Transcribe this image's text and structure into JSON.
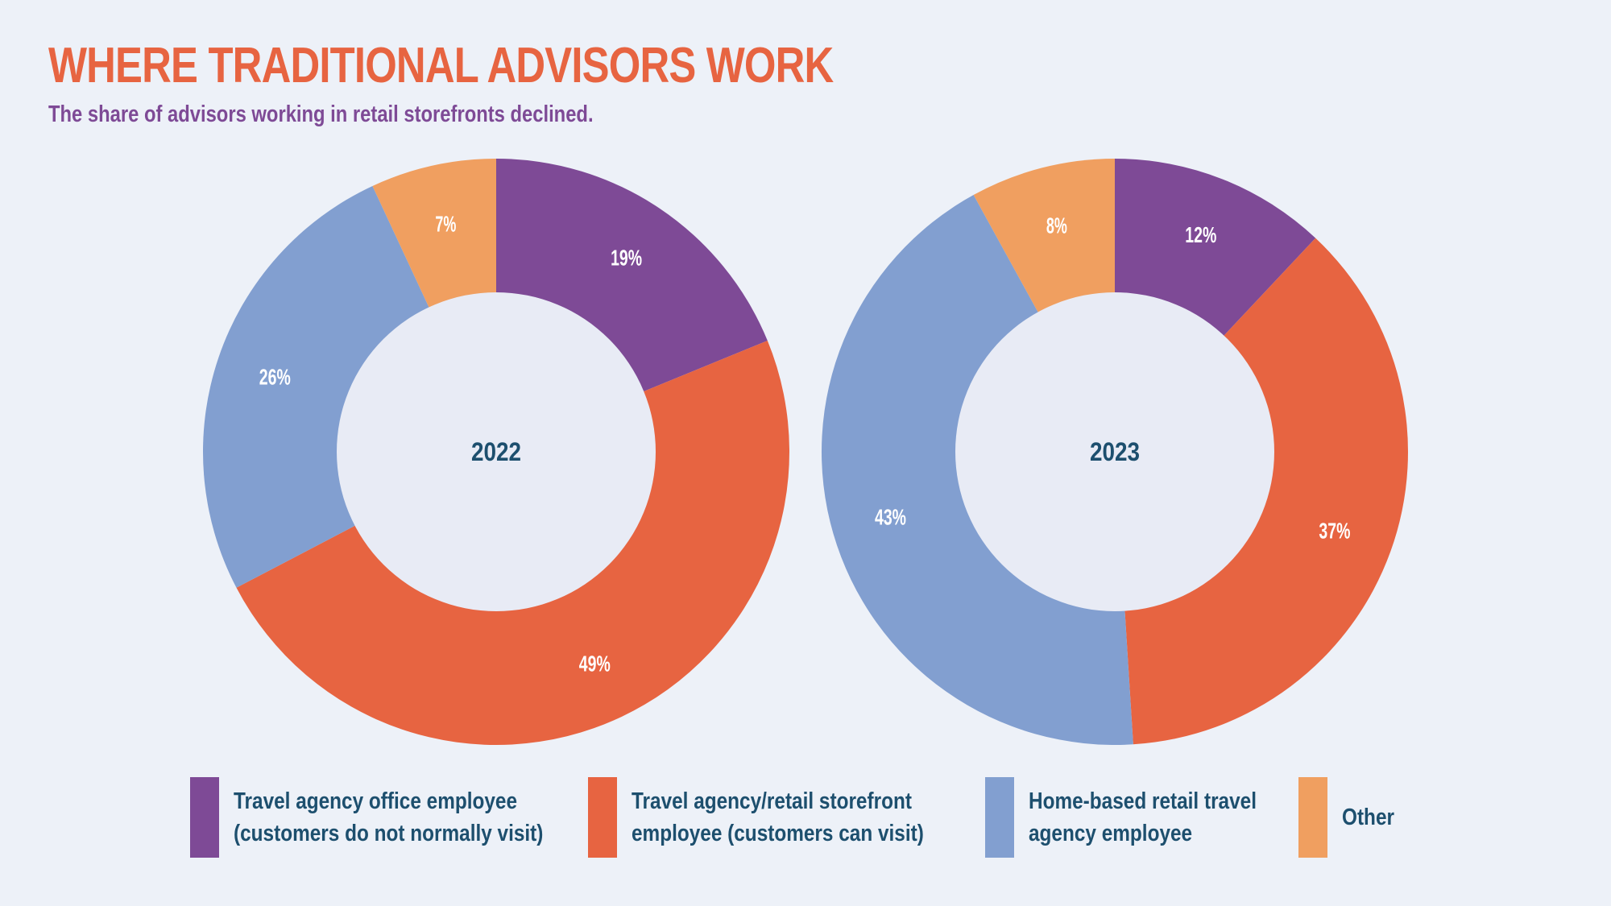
{
  "header": {
    "title": "WHERE TRADITIONAL ADVISORS WORK",
    "subtitle": "The share of advisors working in retail storefronts declined."
  },
  "colors": {
    "office": "#7e4a96",
    "storefront": "#e76441",
    "home": "#829fd0",
    "other": "#f09f60",
    "hole": "#e8ebf5",
    "title": "#e76441",
    "subtitle": "#7e4a96",
    "text": "#1d4f6e"
  },
  "chart_data": {
    "type": "donut",
    "categories": [
      "Travel agency office employee (customers do not normally visit)",
      "Travel agency/retail storefront employee (customers can visit)",
      "Home-based retail travel agency employee",
      "Other"
    ],
    "series": [
      {
        "name": "2022",
        "values": [
          19,
          49,
          26,
          7
        ],
        "labels": [
          "19%",
          "49%",
          "26%",
          "7%"
        ]
      },
      {
        "name": "2023",
        "values": [
          12,
          37,
          43,
          8
        ],
        "labels": [
          "12%",
          "37%",
          "43%",
          "8%"
        ]
      }
    ],
    "legend_position": "bottom"
  },
  "legend": [
    {
      "line1": "Travel agency office employee",
      "line2": "(customers do not normally visit)",
      "color_key": "office"
    },
    {
      "line1": "Travel agency/retail storefront",
      "line2": "employee (customers can visit)",
      "color_key": "storefront"
    },
    {
      "line1": "Home-based retail travel",
      "line2": "agency employee",
      "color_key": "home"
    },
    {
      "line1": "Other",
      "line2": "",
      "color_key": "other"
    }
  ]
}
